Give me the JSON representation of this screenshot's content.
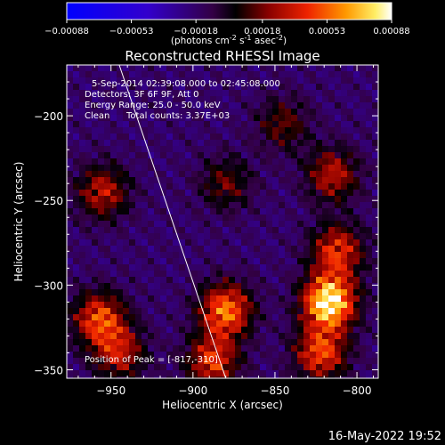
{
  "chart_data": {
    "type": "heatmap",
    "title": "Reconstructed RHESSI Image",
    "xlabel": "Heliocentric X (arcsec)",
    "ylabel": "Heliocentric Y (arcsec)",
    "xlim": [
      -977,
      -787
    ],
    "ylim": [
      -355,
      -170
    ],
    "xticks": [
      -950,
      -900,
      -850,
      -800
    ],
    "yticks": [
      -350,
      -300,
      -250,
      -200
    ],
    "colorbar": {
      "ticks": [
        -0.00088,
        -0.00053,
        -0.00018,
        0.00018,
        0.00053,
        0.00088
      ],
      "tick_labels": [
        "-0.00088",
        "-0.00053",
        "-0.00018",
        "0.00018",
        "0.00053",
        "0.00088"
      ],
      "unit_parts": [
        "(photons cm",
        "-2",
        " s",
        "-1",
        " asec",
        "-2",
        ")"
      ]
    },
    "annotations": [
      "5-Sep-2014 02:39:08.000 to 02:45:08.000",
      "Detectors: 3F 6F 9F, Att 0",
      "Energy Range: 25.0 - 50.0 keV",
      "Clean",
      "Total counts: 3.37E+03"
    ],
    "peak_label": "Position of Peak = [-817,-310]",
    "peak": {
      "x": -817,
      "y": -310
    },
    "limb_line": [
      [
        -945,
        -170
      ],
      [
        -880,
        -355
      ]
    ],
    "sources": [
      {
        "x": -817,
        "y": -310,
        "amp": 1.0
      },
      {
        "x": -812,
        "y": -280,
        "amp": 0.55
      },
      {
        "x": -822,
        "y": -340,
        "amp": 0.6
      },
      {
        "x": -880,
        "y": -315,
        "amp": 0.7
      },
      {
        "x": -888,
        "y": -345,
        "amp": 0.55
      },
      {
        "x": -957,
        "y": -320,
        "amp": 0.6
      },
      {
        "x": -945,
        "y": -340,
        "amp": 0.45
      },
      {
        "x": -955,
        "y": -245,
        "amp": 0.45
      },
      {
        "x": -815,
        "y": -235,
        "amp": 0.45
      },
      {
        "x": -845,
        "y": -205,
        "amp": 0.3
      },
      {
        "x": -880,
        "y": -240,
        "amp": 0.3
      }
    ]
  },
  "footer": {
    "timestamp": "16-May-2022 19:52"
  }
}
